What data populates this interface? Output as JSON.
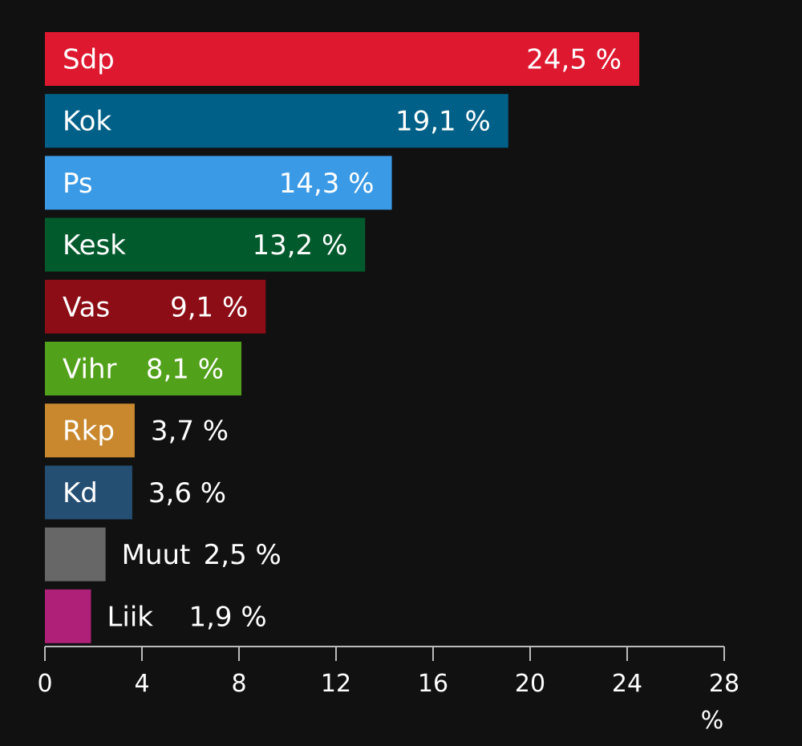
{
  "chart_data": {
    "type": "bar",
    "orientation": "horizontal",
    "categories": [
      "Sdp",
      "Kok",
      "Ps",
      "Kesk",
      "Vas",
      "Vihr",
      "Rkp",
      "Kd",
      "Muut",
      "Liik"
    ],
    "values": [
      24.5,
      19.1,
      14.3,
      13.2,
      9.1,
      8.1,
      3.7,
      3.6,
      2.5,
      1.9
    ],
    "value_labels": [
      "24,5 %",
      "19,1 %",
      "14,3 %",
      "13,2 %",
      "9,1 %",
      "8,1 %",
      "3,7 %",
      "3,6 %",
      "2,5 %",
      "1,9 %"
    ],
    "colors": [
      "#dd182f",
      "#006087",
      "#3b9ae6",
      "#015a2c",
      "#8c0d15",
      "#52a11b",
      "#c9882e",
      "#244e72",
      "#676767",
      "#af2078"
    ],
    "xlabel": "%",
    "xlim": [
      0,
      28
    ],
    "xticks": [
      "0",
      "4",
      "8",
      "12",
      "16",
      "20",
      "24",
      "28"
    ],
    "tick_values": [
      0,
      4,
      8,
      12,
      16,
      20,
      24,
      28
    ],
    "grid": false
  }
}
